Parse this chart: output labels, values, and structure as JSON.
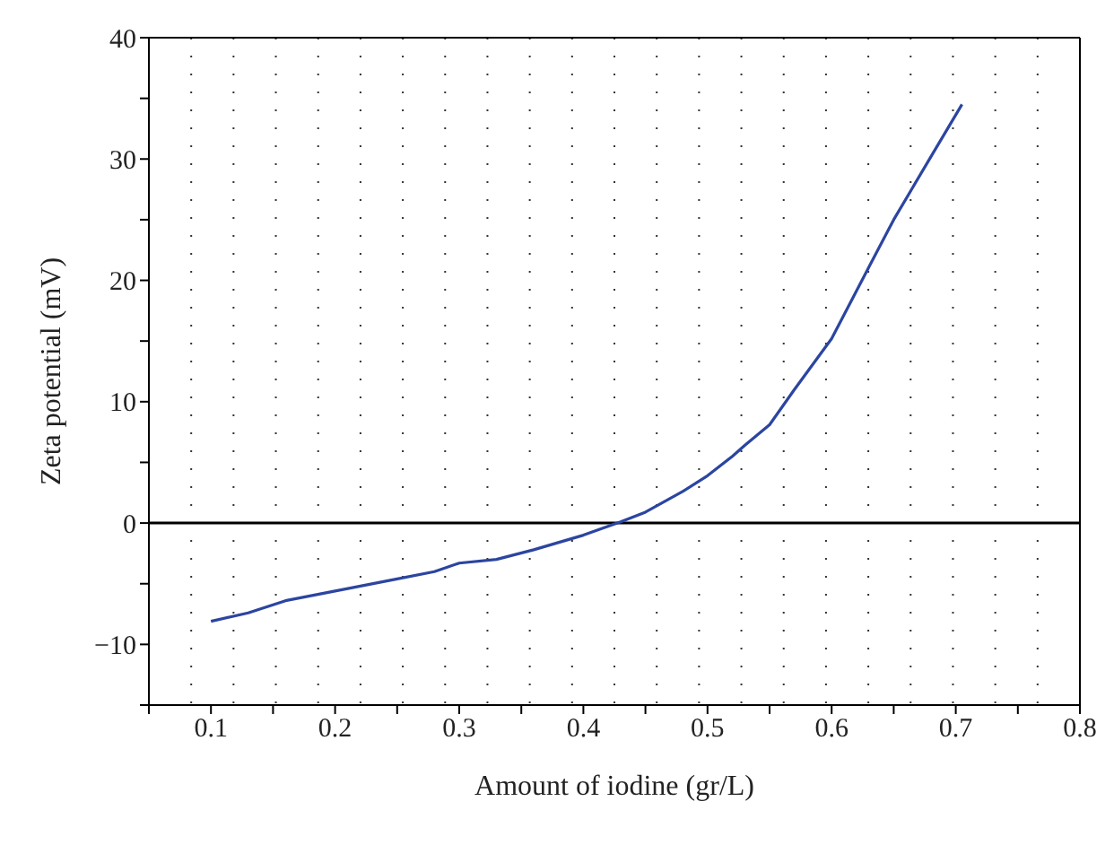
{
  "chart_data": {
    "type": "line",
    "xlabel": "Amount of iodine (gr/L)",
    "ylabel": "Zeta potential (mV)",
    "x": [
      0.1,
      0.13,
      0.16,
      0.2,
      0.25,
      0.28,
      0.3,
      0.33,
      0.36,
      0.4,
      0.43,
      0.45,
      0.48,
      0.5,
      0.52,
      0.53,
      0.55,
      0.57,
      0.6,
      0.63,
      0.65,
      0.68,
      0.705
    ],
    "series": [
      {
        "color": "#2b45a0",
        "values": [
          -8.1,
          -7.4,
          -6.4,
          -5.6,
          -4.6,
          -4.0,
          -3.3,
          -3.0,
          -2.2,
          -1.0,
          0.1,
          0.9,
          2.6,
          3.9,
          5.5,
          6.4,
          8.1,
          11.0,
          15.2,
          21.1,
          25.0,
          30.2,
          34.5
        ]
      }
    ],
    "xlim": [
      0.05,
      0.8
    ],
    "xticks": [
      {
        "value": 0.05,
        "label": null
      },
      0.1,
      {
        "value": 0.15,
        "label": null
      },
      0.2,
      {
        "value": 0.25,
        "label": null
      },
      0.3,
      {
        "value": 0.35,
        "label": null
      },
      0.4,
      {
        "value": 0.45,
        "label": null
      },
      0.5,
      {
        "value": 0.55,
        "label": null
      },
      0.6,
      {
        "value": 0.65,
        "label": null
      },
      0.7,
      {
        "value": 0.75,
        "label": null
      },
      0.8
    ],
    "ylim": [
      -15,
      40
    ],
    "yticks": [
      {
        "value": -15,
        "label": null
      },
      {
        "value": -10,
        "label": "−10"
      },
      {
        "value": -5,
        "label": null
      },
      0,
      {
        "value": 5,
        "label": null
      },
      10,
      {
        "value": 15,
        "label": null
      },
      20,
      {
        "value": 25,
        "label": null
      },
      30,
      {
        "value": 35,
        "label": null
      },
      40
    ],
    "grid": true,
    "ref_lines": [
      {
        "axis": "y",
        "value": 0,
        "color": "#000000"
      }
    ],
    "marker": "none",
    "line_style": "solid",
    "legend": false
  }
}
